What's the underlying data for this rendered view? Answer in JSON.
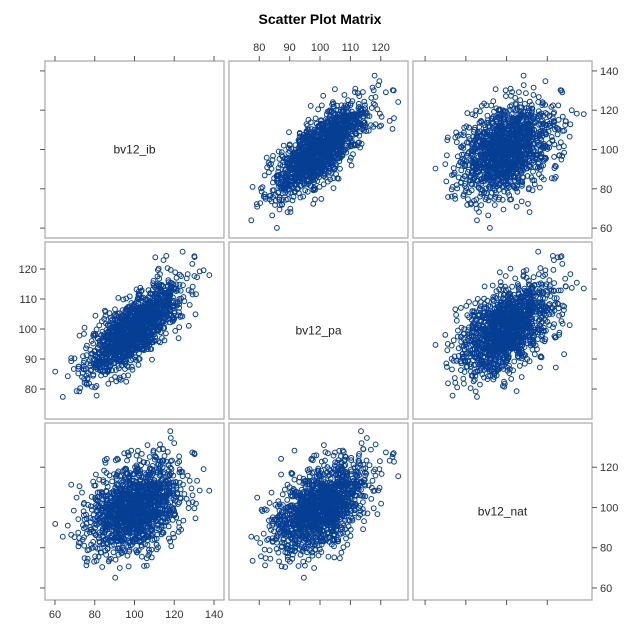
{
  "title": "Scatter Plot Matrix",
  "chart_data": {
    "type": "scatter",
    "layout": "scatter-matrix",
    "variables": [
      "bv12_ib",
      "bv12_pa",
      "bv12_nat"
    ],
    "axis_ticks": {
      "bv12_ib": [
        60,
        80,
        100,
        120,
        140
      ],
      "bv12_pa": [
        80,
        90,
        100,
        110,
        120
      ],
      "bv12_nat": [
        60,
        80,
        100,
        120
      ]
    },
    "axis_ranges": {
      "bv12_ib": [
        58,
        142
      ],
      "bv12_pa": [
        72,
        127
      ],
      "bv12_nat": [
        57,
        139
      ]
    },
    "distribution": {
      "means": [
        100,
        100,
        100
      ],
      "sds": [
        12,
        7.5,
        11
      ],
      "correlations": {
        "ib_pa": 0.75,
        "ib_nat": 0.3,
        "pa_nat": 0.45
      },
      "points_shown": 1400
    },
    "marker": {
      "shape": "open-circle",
      "color": "#063f93"
    },
    "grid": false
  }
}
